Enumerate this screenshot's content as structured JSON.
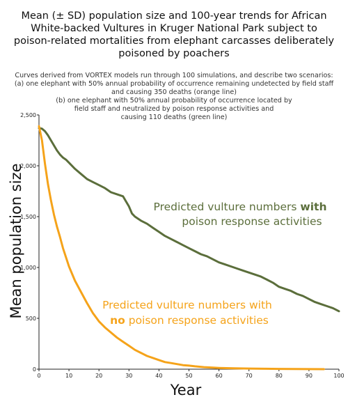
{
  "title_lines": [
    "Mean (± SD) population size and 100-year trends for African",
    "White-backed Vultures in Kruger National Park subject to",
    "poison-related mortalities from elephant carcasses deliberately",
    "poisoned by poachers"
  ],
  "subtitle_lines": [
    "Curves derived from VORTEX models run through 100 simulations, and describe two scenarios:",
    "(a) one elephant with 50% annual probability of occurrence remaining undetected by field staff",
    "and causing 350 deaths (orange line)",
    "(b) one elephant with 50% annual probability of occurrence located by",
    "field staff and neutralized by poison response activities and",
    "causing 110 deaths (green line)"
  ],
  "colors": {
    "with_response": "#5b6e3b",
    "no_response": "#f5a31a",
    "axis": "#222222"
  },
  "annotations": {
    "green_line1": "Predicted vulture numbers ",
    "green_bold": "with",
    "green_line2": "poison response activities",
    "orange_line1": "Predicted vulture numbers with",
    "orange_bold": "no",
    "orange_line2": " poison response activities"
  },
  "chart_data": {
    "type": "line",
    "xlabel": "Year",
    "ylabel": "Mean population size",
    "xlim": [
      0,
      100
    ],
    "ylim": [
      0,
      2500
    ],
    "x_ticks": [
      0,
      10,
      20,
      30,
      40,
      50,
      60,
      70,
      80,
      90,
      100
    ],
    "y_ticks": [
      0,
      500,
      1000,
      1500,
      2000,
      2500
    ],
    "y_tick_labels": [
      "0",
      "500",
      "1,000",
      "1,500",
      "2,000",
      "2,500"
    ],
    "grid": false,
    "series": [
      {
        "key": "with_response",
        "x": [
          0,
          1,
          2,
          3,
          4,
          5,
          6,
          7,
          8,
          9,
          10,
          12,
          14,
          16,
          18,
          20,
          22,
          24,
          26,
          28,
          29,
          30,
          31,
          32,
          34,
          36,
          38,
          40,
          42,
          44,
          46,
          48,
          50,
          52,
          54,
          56,
          58,
          60,
          62,
          64,
          66,
          68,
          70,
          72,
          74,
          76,
          78,
          80,
          82,
          84,
          86,
          88,
          90,
          92,
          94,
          96,
          98,
          100
        ],
        "y": [
          2370,
          2365,
          2340,
          2300,
          2250,
          2200,
          2150,
          2110,
          2080,
          2060,
          2030,
          1970,
          1920,
          1870,
          1840,
          1810,
          1780,
          1740,
          1720,
          1700,
          1650,
          1600,
          1530,
          1500,
          1460,
          1430,
          1390,
          1350,
          1310,
          1280,
          1250,
          1220,
          1190,
          1160,
          1130,
          1110,
          1080,
          1050,
          1030,
          1010,
          990,
          970,
          950,
          930,
          910,
          880,
          850,
          810,
          790,
          770,
          740,
          720,
          690,
          660,
          640,
          620,
          600,
          570
        ]
      },
      {
        "key": "no_response",
        "x": [
          0,
          1,
          2,
          3,
          4,
          5,
          6,
          7,
          8,
          9,
          10,
          12,
          14,
          16,
          18,
          20,
          22,
          24,
          26,
          28,
          30,
          32,
          34,
          36,
          38,
          40,
          42,
          44,
          46,
          48,
          50,
          52,
          55,
          58,
          60,
          65,
          70,
          75,
          80,
          85,
          90,
          95
        ],
        "y": [
          2390,
          2250,
          2020,
          1820,
          1660,
          1520,
          1400,
          1300,
          1190,
          1100,
          1010,
          870,
          760,
          650,
          550,
          470,
          410,
          360,
          310,
          270,
          230,
          190,
          160,
          130,
          110,
          90,
          70,
          60,
          50,
          40,
          35,
          28,
          20,
          15,
          12,
          8,
          6,
          4,
          3,
          2,
          1,
          0
        ]
      }
    ]
  }
}
